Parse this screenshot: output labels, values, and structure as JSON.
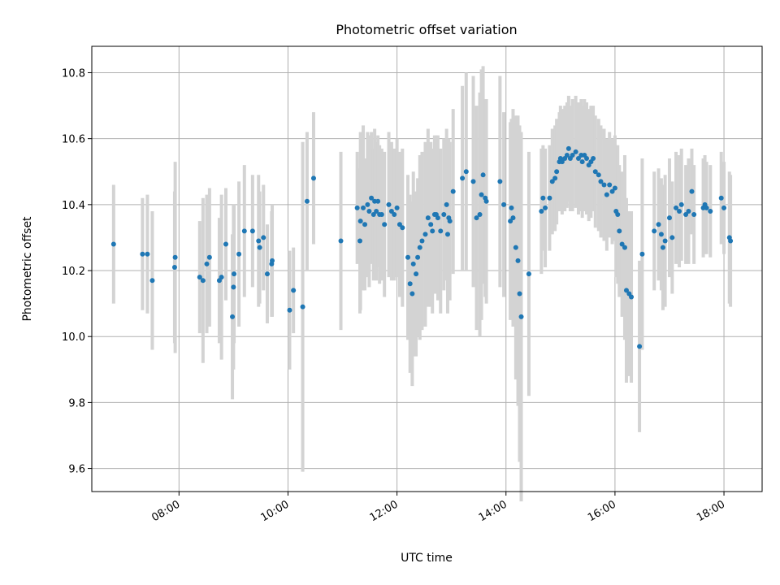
{
  "chart_data": {
    "type": "scatter",
    "title": "Photometric offset variation",
    "xlabel": "UTC time",
    "ylabel": "Photometric offset",
    "x_unit": "hours UTC",
    "xlim": [
      6.4,
      18.7
    ],
    "ylim": [
      9.53,
      10.88
    ],
    "xticks": [
      8,
      10,
      12,
      14,
      16,
      18
    ],
    "xtick_labels": [
      "08:00",
      "10:00",
      "12:00",
      "14:00",
      "16:00",
      "18:00"
    ],
    "yticks": [
      9.6,
      9.8,
      10.0,
      10.2,
      10.4,
      10.6,
      10.8
    ],
    "ytick_labels": [
      "9.6",
      "9.8",
      "10.0",
      "10.2",
      "10.4",
      "10.6",
      "10.8"
    ],
    "grid": true,
    "errorbar_color": "#d3d3d3",
    "point_color": "#1f77b4",
    "series": [
      {
        "x": [
          6.8,
          7.33,
          7.42,
          7.51,
          7.92,
          7.93,
          8.38,
          8.44,
          8.51,
          8.56,
          8.74,
          8.78,
          8.86,
          8.98,
          9.0,
          9.01,
          9.1,
          9.2,
          9.35,
          9.46,
          9.48,
          9.55,
          9.62,
          9.7,
          9.71,
          10.03,
          10.1,
          10.27,
          10.35,
          10.47,
          10.97,
          11.27,
          11.32,
          11.33,
          11.38,
          11.41,
          11.46,
          11.49,
          11.53,
          11.57,
          11.59,
          11.62,
          11.65,
          11.68,
          11.72,
          11.77,
          11.85,
          11.9,
          11.95,
          12.0,
          12.05,
          12.1,
          12.2,
          12.24,
          12.28,
          12.3,
          12.35,
          12.38,
          12.42,
          12.46,
          12.52,
          12.57,
          12.62,
          12.65,
          12.69,
          12.72,
          12.75,
          12.8,
          12.86,
          12.91,
          12.93,
          12.95,
          12.97,
          13.03,
          13.2,
          13.27,
          13.4,
          13.46,
          13.52,
          13.55,
          13.58,
          13.62,
          13.64,
          13.89,
          13.96,
          14.08,
          14.1,
          14.13,
          14.18,
          14.22,
          14.25,
          14.28,
          14.42,
          14.65,
          14.68,
          14.72,
          14.8,
          14.85,
          14.9,
          14.93,
          14.98,
          15.0,
          15.03,
          15.08,
          15.12,
          15.15,
          15.18,
          15.22,
          15.28,
          15.33,
          15.38,
          15.4,
          15.44,
          15.48,
          15.52,
          15.56,
          15.6,
          15.64,
          15.7,
          15.74,
          15.8,
          15.85,
          15.9,
          15.95,
          16.0,
          16.02,
          16.05,
          16.08,
          16.13,
          16.18,
          16.21,
          16.26,
          16.3,
          16.45,
          16.5,
          16.72,
          16.8,
          16.85,
          16.88,
          16.92,
          17.0,
          17.05,
          17.12,
          17.18,
          17.22,
          17.3,
          17.35,
          17.41,
          17.45,
          17.62,
          17.65,
          17.68,
          17.75,
          17.95,
          18.0,
          18.1,
          18.12
        ],
        "y": [
          10.28,
          10.25,
          10.25,
          10.17,
          10.21,
          10.24,
          10.18,
          10.17,
          10.22,
          10.24,
          10.17,
          10.18,
          10.28,
          10.06,
          10.15,
          10.19,
          10.25,
          10.32,
          10.32,
          10.29,
          10.27,
          10.3,
          10.19,
          10.22,
          10.23,
          10.08,
          10.14,
          10.09,
          10.41,
          10.48,
          10.29,
          10.39,
          10.29,
          10.35,
          10.39,
          10.34,
          10.4,
          10.38,
          10.42,
          10.37,
          10.41,
          10.38,
          10.41,
          10.37,
          10.37,
          10.34,
          10.4,
          10.38,
          10.37,
          10.39,
          10.34,
          10.33,
          10.24,
          10.16,
          10.13,
          10.22,
          10.19,
          10.24,
          10.27,
          10.29,
          10.31,
          10.36,
          10.34,
          10.32,
          10.37,
          10.37,
          10.36,
          10.32,
          10.37,
          10.4,
          10.31,
          10.36,
          10.35,
          10.44,
          10.48,
          10.5,
          10.47,
          10.36,
          10.37,
          10.43,
          10.49,
          10.42,
          10.41,
          10.47,
          10.4,
          10.35,
          10.39,
          10.36,
          10.27,
          10.23,
          10.13,
          10.06,
          10.19,
          10.38,
          10.42,
          10.39,
          10.42,
          10.47,
          10.48,
          10.5,
          10.53,
          10.54,
          10.53,
          10.54,
          10.55,
          10.57,
          10.54,
          10.55,
          10.56,
          10.54,
          10.55,
          10.53,
          10.55,
          10.54,
          10.52,
          10.53,
          10.54,
          10.5,
          10.49,
          10.47,
          10.46,
          10.43,
          10.46,
          10.44,
          10.45,
          10.38,
          10.37,
          10.32,
          10.28,
          10.27,
          10.14,
          10.13,
          10.12,
          9.97,
          10.25,
          10.32,
          10.34,
          10.31,
          10.27,
          10.29,
          10.36,
          10.3,
          10.39,
          10.38,
          10.4,
          10.37,
          10.38,
          10.44,
          10.37,
          10.39,
          10.4,
          10.39,
          10.38,
          10.42,
          10.39,
          10.3,
          10.29
        ],
        "yerr": [
          0.18,
          0.17,
          0.18,
          0.21,
          0.23,
          0.29,
          0.17,
          0.25,
          0.21,
          0.21,
          0.19,
          0.25,
          0.17,
          0.25,
          0.25,
          0.21,
          0.22,
          0.2,
          0.17,
          0.2,
          0.17,
          0.16,
          0.15,
          0.16,
          0.17,
          0.18,
          0.13,
          0.5,
          0.21,
          0.2,
          0.27,
          0.17,
          0.22,
          0.27,
          0.25,
          0.2,
          0.22,
          0.23,
          0.2,
          0.2,
          0.22,
          0.21,
          0.2,
          0.21,
          0.2,
          0.22,
          0.22,
          0.21,
          0.2,
          0.21,
          0.22,
          0.24,
          0.25,
          0.27,
          0.28,
          0.28,
          0.25,
          0.24,
          0.28,
          0.27,
          0.28,
          0.27,
          0.25,
          0.25,
          0.24,
          0.24,
          0.25,
          0.25,
          0.23,
          0.23,
          0.24,
          0.24,
          0.24,
          0.25,
          0.28,
          0.3,
          0.32,
          0.34,
          0.37,
          0.38,
          0.33,
          0.3,
          0.31,
          0.32,
          0.28,
          0.3,
          0.27,
          0.33,
          0.4,
          0.44,
          0.51,
          0.56,
          0.37,
          0.19,
          0.16,
          0.18,
          0.16,
          0.16,
          0.16,
          0.16,
          0.15,
          0.16,
          0.16,
          0.16,
          0.16,
          0.16,
          0.16,
          0.17,
          0.17,
          0.17,
          0.17,
          0.17,
          0.17,
          0.17,
          0.17,
          0.17,
          0.16,
          0.17,
          0.17,
          0.17,
          0.17,
          0.17,
          0.16,
          0.16,
          0.16,
          0.2,
          0.21,
          0.2,
          0.22,
          0.28,
          0.28,
          0.25,
          0.26,
          0.26,
          0.29,
          0.18,
          0.17,
          0.17,
          0.19,
          0.2,
          0.18,
          0.17,
          0.17,
          0.17,
          0.17,
          0.15,
          0.16,
          0.13,
          0.15,
          0.15,
          0.15,
          0.14,
          0.14,
          0.14,
          0.14,
          0.2,
          0.2
        ]
      }
    ]
  }
}
